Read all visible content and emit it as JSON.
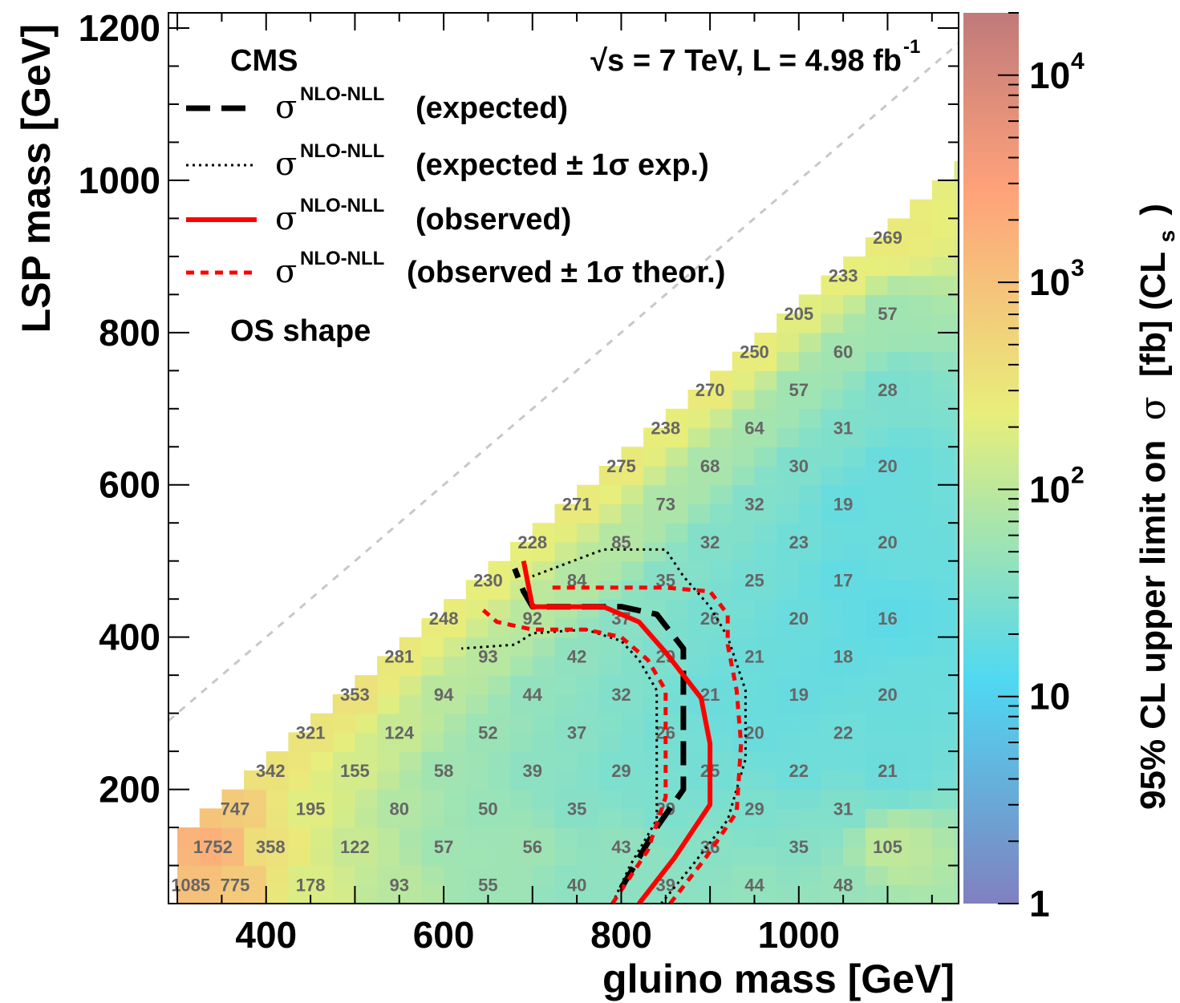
{
  "chart_data": {
    "type": "heatmap",
    "xlabel": "gluino mass [GeV]",
    "ylabel": "LSP mass [GeV]",
    "xlim": [
      290,
      1180
    ],
    "ylim": [
      50,
      1220
    ],
    "xticks": [
      "400",
      "600",
      "800",
      "1000"
    ],
    "yticks": [
      "200",
      "400",
      "600",
      "800",
      "1000",
      "1200"
    ],
    "colorbar": {
      "title_main": "95% CL upper limit on",
      "title_sigma": "σ",
      "title_unit": "[fb] (CL",
      "title_sub": "s",
      "title_close": ")",
      "scale": "log",
      "range": [
        1,
        20000
      ],
      "ticks": [
        {
          "value": 1,
          "base": "1",
          "exp": ""
        },
        {
          "value": 10,
          "base": "10",
          "exp": ""
        },
        {
          "value": 100,
          "base": "10",
          "exp": "2"
        },
        {
          "value": 1000,
          "base": "10",
          "exp": "3"
        },
        {
          "value": 10000,
          "base": "10",
          "exp": "4"
        }
      ],
      "colors": [
        "#8080c0",
        "#4fd8f2",
        "#e8ee7a",
        "#ffa27a",
        "#c07a7a"
      ]
    },
    "header": {
      "experiment": "CMS",
      "energy_prefix": "√s = 7 TeV, L = 4.98 fb",
      "energy_exp": "-1",
      "analysis": "OS shape"
    },
    "legend": [
      {
        "sigma": "σ",
        "sup": "NLO-NLL",
        "text": "(expected)",
        "color": "#000000",
        "style": "long-dash"
      },
      {
        "sigma": "σ",
        "sup": "NLO-NLL",
        "text": "(expected ± 1σ exp.)",
        "color": "#000000",
        "style": "dotted"
      },
      {
        "sigma": "σ",
        "sup": "NLO-NLL",
        "text": "(observed)",
        "color": "#ff0000",
        "style": "solid"
      },
      {
        "sigma": "σ",
        "sup": "NLO-NLL",
        "text": "(observed ± 1σ theor.)",
        "color": "#ff0000",
        "style": "dashed"
      }
    ],
    "cell_values": [
      {
        "x": 315,
        "y": 75,
        "v": "1085"
      },
      {
        "x": 365,
        "y": 75,
        "v": "775"
      },
      {
        "x": 450,
        "y": 75,
        "v": "178"
      },
      {
        "x": 550,
        "y": 75,
        "v": "93"
      },
      {
        "x": 650,
        "y": 75,
        "v": "55"
      },
      {
        "x": 750,
        "y": 75,
        "v": "40"
      },
      {
        "x": 850,
        "y": 75,
        "v": "39"
      },
      {
        "x": 950,
        "y": 75,
        "v": "44"
      },
      {
        "x": 1050,
        "y": 75,
        "v": "48"
      },
      {
        "x": 340,
        "y": 125,
        "v": "1752"
      },
      {
        "x": 405,
        "y": 125,
        "v": "358"
      },
      {
        "x": 500,
        "y": 125,
        "v": "122"
      },
      {
        "x": 600,
        "y": 125,
        "v": "57"
      },
      {
        "x": 700,
        "y": 125,
        "v": "56"
      },
      {
        "x": 800,
        "y": 125,
        "v": "43"
      },
      {
        "x": 900,
        "y": 125,
        "v": "36"
      },
      {
        "x": 1000,
        "y": 125,
        "v": "35"
      },
      {
        "x": 1100,
        "y": 125,
        "v": "105"
      },
      {
        "x": 365,
        "y": 175,
        "v": "747"
      },
      {
        "x": 450,
        "y": 175,
        "v": "195"
      },
      {
        "x": 550,
        "y": 175,
        "v": "80"
      },
      {
        "x": 650,
        "y": 175,
        "v": "50"
      },
      {
        "x": 750,
        "y": 175,
        "v": "35"
      },
      {
        "x": 850,
        "y": 175,
        "v": "29"
      },
      {
        "x": 950,
        "y": 175,
        "v": "29"
      },
      {
        "x": 1050,
        "y": 175,
        "v": "31"
      },
      {
        "x": 405,
        "y": 225,
        "v": "342"
      },
      {
        "x": 500,
        "y": 225,
        "v": "155"
      },
      {
        "x": 600,
        "y": 225,
        "v": "58"
      },
      {
        "x": 700,
        "y": 225,
        "v": "39"
      },
      {
        "x": 800,
        "y": 225,
        "v": "29"
      },
      {
        "x": 900,
        "y": 225,
        "v": "25"
      },
      {
        "x": 1000,
        "y": 225,
        "v": "22"
      },
      {
        "x": 1100,
        "y": 225,
        "v": "21"
      },
      {
        "x": 450,
        "y": 275,
        "v": "321"
      },
      {
        "x": 550,
        "y": 275,
        "v": "124"
      },
      {
        "x": 650,
        "y": 275,
        "v": "52"
      },
      {
        "x": 750,
        "y": 275,
        "v": "37"
      },
      {
        "x": 850,
        "y": 275,
        "v": "26"
      },
      {
        "x": 950,
        "y": 275,
        "v": "20"
      },
      {
        "x": 1050,
        "y": 275,
        "v": "22"
      },
      {
        "x": 500,
        "y": 325,
        "v": "353"
      },
      {
        "x": 600,
        "y": 325,
        "v": "94"
      },
      {
        "x": 700,
        "y": 325,
        "v": "44"
      },
      {
        "x": 800,
        "y": 325,
        "v": "32"
      },
      {
        "x": 900,
        "y": 325,
        "v": "21"
      },
      {
        "x": 1000,
        "y": 325,
        "v": "19"
      },
      {
        "x": 1100,
        "y": 325,
        "v": "20"
      },
      {
        "x": 550,
        "y": 375,
        "v": "281"
      },
      {
        "x": 650,
        "y": 375,
        "v": "93"
      },
      {
        "x": 750,
        "y": 375,
        "v": "42"
      },
      {
        "x": 850,
        "y": 375,
        "v": "29"
      },
      {
        "x": 950,
        "y": 375,
        "v": "21"
      },
      {
        "x": 1050,
        "y": 375,
        "v": "18"
      },
      {
        "x": 600,
        "y": 425,
        "v": "248"
      },
      {
        "x": 700,
        "y": 425,
        "v": "92"
      },
      {
        "x": 800,
        "y": 425,
        "v": "37"
      },
      {
        "x": 900,
        "y": 425,
        "v": "26"
      },
      {
        "x": 1000,
        "y": 425,
        "v": "20"
      },
      {
        "x": 1100,
        "y": 425,
        "v": "16"
      },
      {
        "x": 650,
        "y": 475,
        "v": "230"
      },
      {
        "x": 750,
        "y": 475,
        "v": "84"
      },
      {
        "x": 850,
        "y": 475,
        "v": "35"
      },
      {
        "x": 950,
        "y": 475,
        "v": "25"
      },
      {
        "x": 1050,
        "y": 475,
        "v": "17"
      },
      {
        "x": 700,
        "y": 525,
        "v": "228"
      },
      {
        "x": 800,
        "y": 525,
        "v": "85"
      },
      {
        "x": 900,
        "y": 525,
        "v": "32"
      },
      {
        "x": 1000,
        "y": 525,
        "v": "23"
      },
      {
        "x": 1100,
        "y": 525,
        "v": "20"
      },
      {
        "x": 750,
        "y": 575,
        "v": "271"
      },
      {
        "x": 850,
        "y": 575,
        "v": "73"
      },
      {
        "x": 950,
        "y": 575,
        "v": "32"
      },
      {
        "x": 1050,
        "y": 575,
        "v": "19"
      },
      {
        "x": 800,
        "y": 625,
        "v": "275"
      },
      {
        "x": 900,
        "y": 625,
        "v": "68"
      },
      {
        "x": 1000,
        "y": 625,
        "v": "30"
      },
      {
        "x": 1100,
        "y": 625,
        "v": "20"
      },
      {
        "x": 850,
        "y": 675,
        "v": "238"
      },
      {
        "x": 950,
        "y": 675,
        "v": "64"
      },
      {
        "x": 1050,
        "y": 675,
        "v": "31"
      },
      {
        "x": 900,
        "y": 725,
        "v": "270"
      },
      {
        "x": 1000,
        "y": 725,
        "v": "57"
      },
      {
        "x": 1100,
        "y": 725,
        "v": "28"
      },
      {
        "x": 950,
        "y": 775,
        "v": "250"
      },
      {
        "x": 1050,
        "y": 775,
        "v": "60"
      },
      {
        "x": 1000,
        "y": 825,
        "v": "205"
      },
      {
        "x": 1100,
        "y": 825,
        "v": "57"
      },
      {
        "x": 1050,
        "y": 875,
        "v": "233"
      },
      {
        "x": 1100,
        "y": 925,
        "v": "269"
      }
    ],
    "series": [
      {
        "name": "expected",
        "color": "#000000",
        "style": "long-dash",
        "x": [
          800,
          840,
          870,
          870,
          870,
          840,
          800,
          700,
          690,
          680
        ],
        "y": [
          70,
          150,
          200,
          300,
          385,
          430,
          440,
          440,
          460,
          490
        ]
      },
      {
        "name": "expected -1σ exp.",
        "color": "#000000",
        "style": "dotted",
        "x": [
          790,
          810,
          840,
          840,
          840,
          820,
          800,
          760,
          700,
          680,
          620
        ],
        "y": [
          50,
          100,
          160,
          250,
          330,
          370,
          395,
          410,
          405,
          390,
          385
        ]
      },
      {
        "name": "expected +1σ exp.",
        "color": "#000000",
        "style": "dotted",
        "x": [
          845,
          880,
          920,
          940,
          940,
          920,
          900,
          870,
          850,
          780,
          700
        ],
        "y": [
          50,
          100,
          160,
          240,
          330,
          400,
          440,
          480,
          515,
          515,
          480
        ]
      },
      {
        "name": "observed",
        "color": "#ff0000",
        "style": "solid",
        "x": [
          820,
          860,
          900,
          900,
          890,
          870,
          850,
          820,
          780,
          700,
          690
        ],
        "y": [
          50,
          110,
          180,
          260,
          320,
          350,
          380,
          420,
          440,
          440,
          500
        ]
      },
      {
        "name": "observed -1σ theor.",
        "color": "#ff0000",
        "style": "dashed",
        "x": [
          790,
          830,
          850,
          850,
          850,
          830,
          800,
          760,
          700,
          660,
          640
        ],
        "y": [
          50,
          120,
          190,
          270,
          330,
          370,
          400,
          410,
          410,
          420,
          440
        ]
      },
      {
        "name": "observed +1σ theor.",
        "color": "#ff0000",
        "style": "dashed",
        "x": [
          855,
          895,
          930,
          935,
          930,
          920,
          920,
          900,
          850,
          780,
          720
        ],
        "y": [
          50,
          110,
          170,
          260,
          330,
          390,
          430,
          460,
          465,
          465,
          465
        ]
      }
    ]
  }
}
